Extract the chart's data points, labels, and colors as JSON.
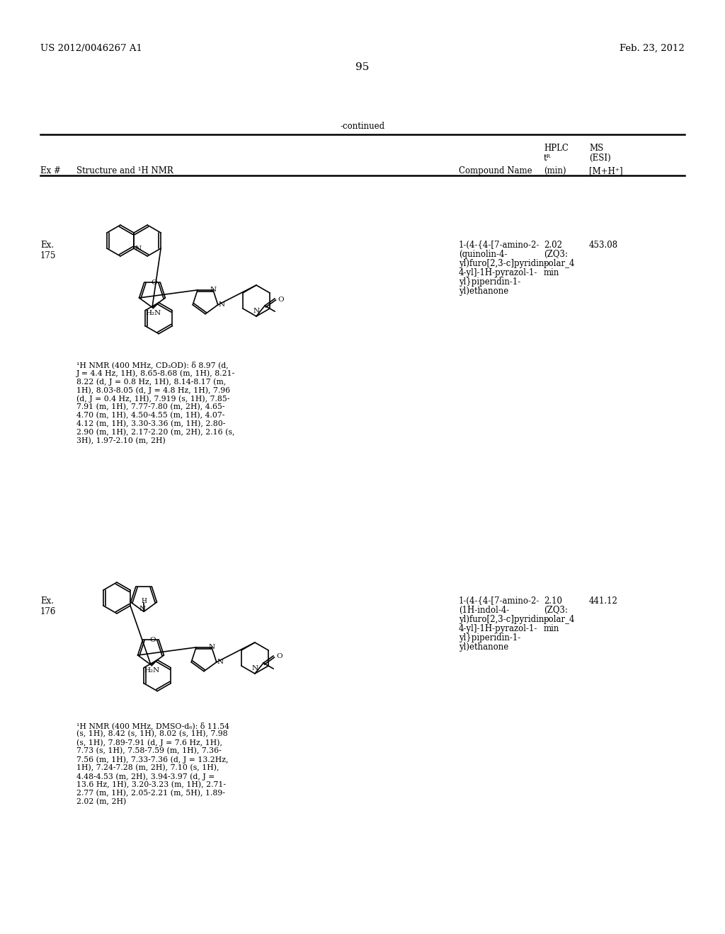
{
  "header_left": "US 2012/0046267 A1",
  "header_right": "Feb. 23, 2012",
  "page_number": "95",
  "continued_text": "-continued",
  "ex175_label": "Ex.\n175",
  "ex175_compound": "1-(4-{4-[7-amino-2-\n(quinolin-4-\nyl)furo[2,3-c]pyridin-\n4-yl]-1H-pyrazol-1-\nyl}piperidin-1-\nyl)ethanone",
  "ex175_hplc": "2.02",
  "ex175_ms": "453.08",
  "ex175_nmr": "¹H NMR (400 MHz, CD₃OD): δ 8.97 (d,\nJ = 4.4 Hz, 1H), 8.65-8.68 (m, 1H), 8.21-\n8.22 (d, J = 0.8 Hz, 1H), 8.14-8.17 (m,\n1H), 8.03-8.05 (d, J = 4.8 Hz, 1H), 7.96\n(d, J = 0.4 Hz, 1H), 7.919 (s, 1H), 7.85-\n7.91 (m, 1H), 7.77-7.80 (m, 2H), 4.65-\n4.70 (m, 1H), 4.50-4.55 (m, 1H), 4.07-\n4.12 (m, 1H), 3.30-3.36 (m, 1H), 2.80-\n2.90 (m, 1H), 2.17-2.20 (m, 2H), 2.16 (s,\n3H), 1.97-2.10 (m, 2H)",
  "ex176_label": "Ex.\n176",
  "ex176_compound": "1-(4-{4-[7-amino-2-\n(1H-indol-4-\nyl)furo[2,3-c]pyridin-\n4-yl]-1H-pyrazol-1-\nyl}piperidin-1-\nyl)ethanone",
  "ex176_hplc": "2.10",
  "ex176_ms": "441.12",
  "ex176_nmr": "¹H NMR (400 MHz, DMSO-d₆): δ 11.54\n(s, 1H), 8.42 (s, 1H), 8.02 (s, 1H), 7.98\n(s, 1H), 7.89-7.91 (d, J = 7.6 Hz, 1H),\n7.73 (s, 1H), 7.58-7.59 (m, 1H), 7.36-\n7.56 (m, 1H), 7.33-7.36 (d, J = 13.2Hz,\n1H), 7.24-7.28 (m, 2H), 7.10 (s, 1H),\n4.48-4.53 (m, 2H), 3.94-3.97 (d, J =\n13.6 Hz, 1H), 3.20-3.23 (m, 1H), 2.71-\n2.77 (m, 1H), 2.05-2.21 (m, 5H), 1.89-\n2.02 (m, 2H)",
  "bg_color": "#ffffff",
  "text_color": "#000000"
}
